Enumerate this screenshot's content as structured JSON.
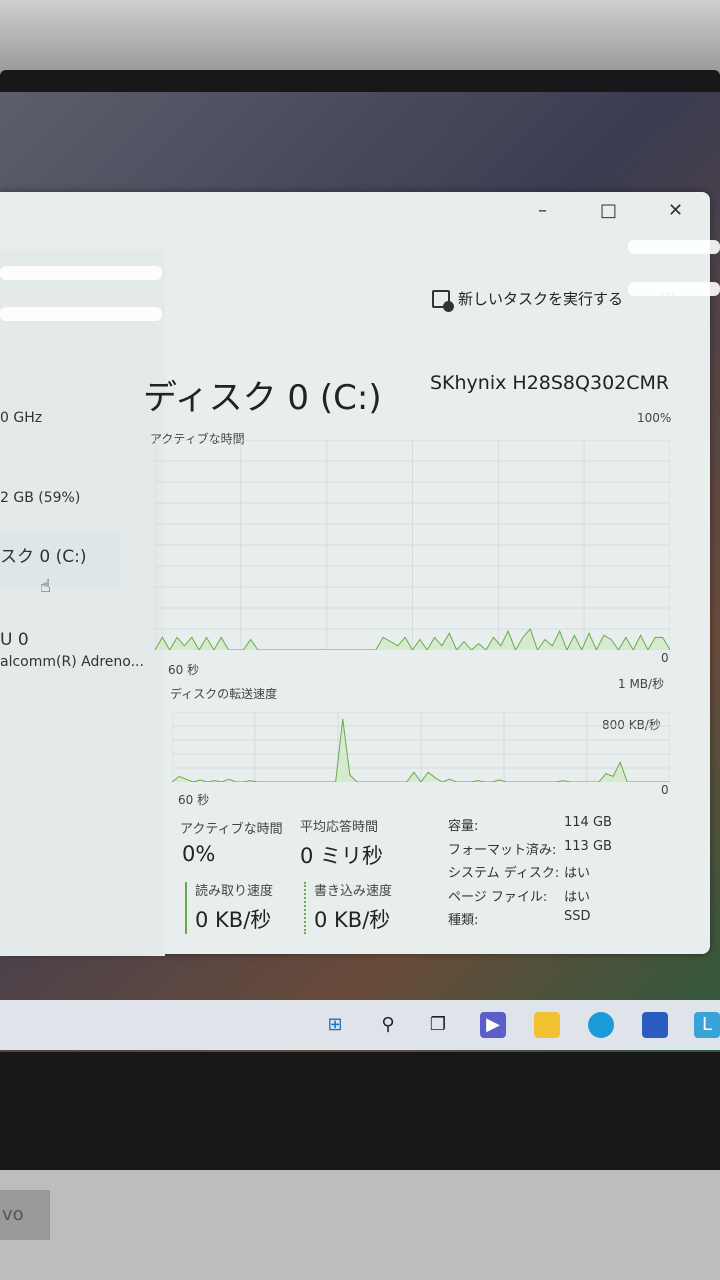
{
  "window": {
    "new_task_label": "新しいタスクを実行する",
    "more_label": "...",
    "minimize": "–",
    "maximize": "□",
    "close": "✕"
  },
  "sidebar": {
    "items": [
      {
        "label": "0 GHz"
      },
      {
        "label": "2 GB (59%)"
      },
      {
        "label": "スク 0 (C:)"
      },
      {
        "label": "U 0"
      },
      {
        "label": "alcomm(R) Adreno..."
      }
    ]
  },
  "header": {
    "title": "ディスク 0 (C:)",
    "model": "SKhynix H28S8Q302CMR"
  },
  "chart_data": [
    {
      "type": "line",
      "title": "アクティブな時間",
      "ymax_label": "100%",
      "ymin_label": "0",
      "xlabel": "60 秒",
      "ylim": [
        0,
        100
      ],
      "values": [
        0,
        6,
        0,
        6,
        2,
        6,
        0,
        6,
        0,
        6,
        0,
        0,
        0,
        5,
        0,
        0,
        0,
        0,
        0,
        0,
        0,
        0,
        0,
        0,
        0,
        0,
        0,
        0,
        0,
        0,
        0,
        6,
        4,
        2,
        6,
        0,
        5,
        0,
        6,
        2,
        8,
        0,
        4,
        0,
        3,
        0,
        6,
        2,
        9,
        0,
        6,
        10,
        0,
        5,
        2,
        9,
        0,
        7,
        0,
        8,
        0,
        7,
        5,
        0,
        6,
        0,
        7,
        0,
        6,
        6,
        0
      ]
    },
    {
      "type": "line",
      "title": "ディスクの転送速度",
      "ymax_label": "1 MB/秒",
      "second_label": "800 KB/秒",
      "ymin_label": "0",
      "xlabel": "60 秒",
      "ylim": [
        0,
        1000
      ],
      "values": [
        0,
        80,
        40,
        0,
        30,
        0,
        20,
        0,
        40,
        0,
        0,
        20,
        0,
        0,
        0,
        0,
        0,
        0,
        0,
        0,
        0,
        0,
        0,
        0,
        900,
        100,
        0,
        0,
        0,
        0,
        0,
        0,
        0,
        0,
        140,
        0,
        140,
        60,
        0,
        40,
        0,
        0,
        0,
        20,
        0,
        0,
        30,
        0,
        0,
        0,
        0,
        0,
        0,
        0,
        0,
        20,
        0,
        0,
        0,
        0,
        0,
        120,
        80,
        280,
        0,
        0,
        0,
        0,
        0,
        0,
        0
      ]
    }
  ],
  "stats": {
    "active_label": "アクティブな時間",
    "active_value": "0%",
    "response_label": "平均応答時間",
    "response_value": "0 ミリ秒",
    "read_label": "読み取り速度",
    "read_value": "0 KB/秒",
    "write_label": "書き込み速度",
    "write_value": "0 KB/秒"
  },
  "properties": [
    {
      "k": "容量:",
      "v": "114 GB"
    },
    {
      "k": "フォーマット済み:",
      "v": "113 GB"
    },
    {
      "k": "システム ディスク:",
      "v": "はい"
    },
    {
      "k": "ページ ファイル:",
      "v": "はい"
    },
    {
      "k": "種類:",
      "v": "SSD"
    }
  ],
  "colors": {
    "graph": "#6aaa4a",
    "window": "#e8eeee"
  },
  "brand": "vo"
}
